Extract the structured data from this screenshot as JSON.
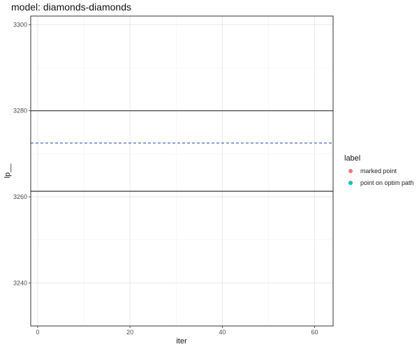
{
  "chart_data": {
    "type": "line",
    "title": "model: diamonds-diamonds",
    "xlabel": "iter",
    "ylabel": "lp__",
    "xlim": [
      -1.5,
      64
    ],
    "ylim": [
      3230,
      3302
    ],
    "x_ticks": [
      0,
      20,
      40,
      60
    ],
    "y_ticks": [
      3240,
      3260,
      3280,
      3300
    ],
    "x_minor": [
      10,
      30,
      50
    ],
    "y_minor": [
      3250,
      3270,
      3290
    ],
    "grid": true,
    "hlines": [
      {
        "name": "upper",
        "y": 3280,
        "style": "solid",
        "color": "#333333"
      },
      {
        "name": "lower",
        "y": 3261.3,
        "style": "solid",
        "color": "#333333"
      },
      {
        "name": "reference",
        "y": 3272.5,
        "style": "dashed",
        "color": "#3a4fd0"
      }
    ],
    "legend": {
      "title": "label",
      "placement": "right",
      "items": [
        {
          "label": "marked point",
          "color": "#F8766D"
        },
        {
          "label": "point on optim path",
          "color": "#00BFC4"
        }
      ]
    }
  }
}
